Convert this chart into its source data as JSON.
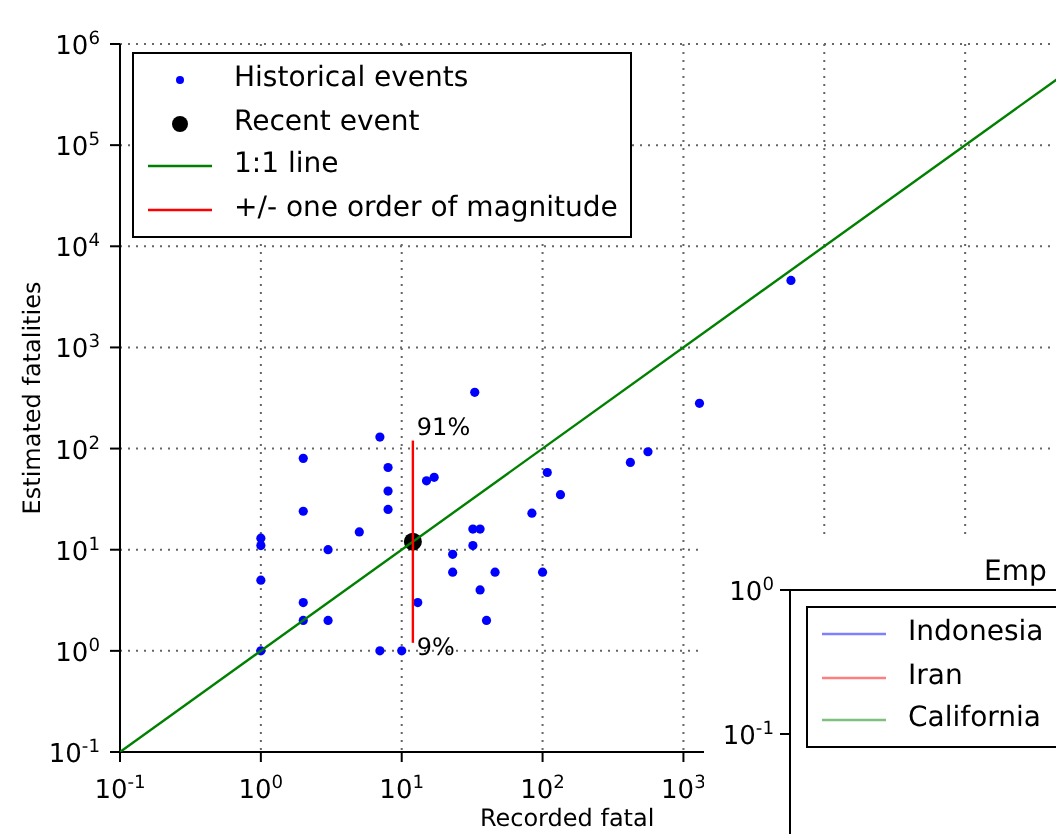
{
  "chart_data": [
    {
      "type": "scatter",
      "xlabel": "Recorded fatal",
      "ylabel": "Estimated fatalities",
      "log": "xy",
      "grid": true,
      "legend": "top left",
      "xlim": [
        0.1,
        1000000
      ],
      "ylim": [
        0.1,
        1000000
      ],
      "xticks": [
        {
          "value": 0.1,
          "label": "10$^{-1}$"
        },
        {
          "value": 1,
          "label": "10$^{0}$"
        },
        {
          "value": 10,
          "label": "10$^{1}$"
        },
        {
          "value": 100,
          "label": "10$^{2}$"
        },
        {
          "value": 1000,
          "label": "10$^{3}$"
        },
        {
          "value": 10000,
          "label": null
        },
        {
          "value": 100000,
          "label": null
        },
        {
          "value": 1000000,
          "label": null
        }
      ],
      "yticks": [
        {
          "value": 0.1,
          "label": "10$^{-1}$"
        },
        {
          "value": 1,
          "label": "10$^{0}$"
        },
        {
          "value": 10,
          "label": "10$^{1}$"
        },
        {
          "value": 100,
          "label": "10$^{2}$"
        },
        {
          "value": 1000,
          "label": "10$^{3}$"
        },
        {
          "value": 10000,
          "label": "10$^{4}$"
        },
        {
          "value": 100000,
          "label": "10$^{5}$"
        },
        {
          "value": 1000000,
          "label": "10$^{6}$"
        }
      ],
      "series": [
        {
          "name": "Historical events",
          "marker": "circle",
          "color": "#0000ff",
          "x": [
            1,
            1,
            1,
            1,
            2,
            2,
            2,
            2,
            3,
            3,
            5,
            7,
            7,
            8,
            8,
            8,
            10,
            13,
            15,
            17,
            23,
            23,
            32,
            36,
            32,
            33,
            36,
            40,
            46,
            84,
            100,
            108,
            134,
            420,
            560,
            1300,
            5800
          ],
          "values": [
            13,
            11,
            5,
            1,
            80,
            24,
            3,
            2,
            10,
            2,
            15,
            130,
            1,
            65,
            38,
            25,
            1,
            3,
            48,
            52,
            9,
            6,
            16,
            16,
            11,
            360,
            4,
            2,
            6,
            23,
            6,
            58,
            35,
            73,
            93,
            280,
            4600
          ]
        },
        {
          "name": "Recent event",
          "marker": "circle",
          "color": "#000000",
          "x": [
            12
          ],
          "values": [
            12
          ]
        },
        {
          "name": "1:1 line",
          "type": "line",
          "marker": "none",
          "color": "#008000",
          "x": [
            0.1,
            1000000
          ],
          "values": [
            0.1,
            1000000
          ]
        },
        {
          "name": "+/- one order of magnitude",
          "type": "line",
          "marker": "none",
          "color": "#ff0000",
          "x": [
            12,
            12
          ],
          "values": [
            1.2,
            120
          ]
        }
      ],
      "annotations": [
        {
          "text": "91%",
          "x": 12,
          "y": 120
        },
        {
          "text": "9%",
          "x": 12,
          "y": 1.2
        }
      ]
    },
    {
      "type": "other",
      "title": "Emp",
      "legend": "top left",
      "annotations": [
        "10$^{0}$",
        "10$^{-1}$"
      ],
      "series": [
        {
          "name": "Indonesia",
          "type": "line",
          "color": "#7f7fff"
        },
        {
          "name": "Iran",
          "type": "line",
          "color": "#ff7f7f"
        },
        {
          "name": "California",
          "type": "line",
          "color": "#7fbf7f"
        }
      ]
    }
  ]
}
